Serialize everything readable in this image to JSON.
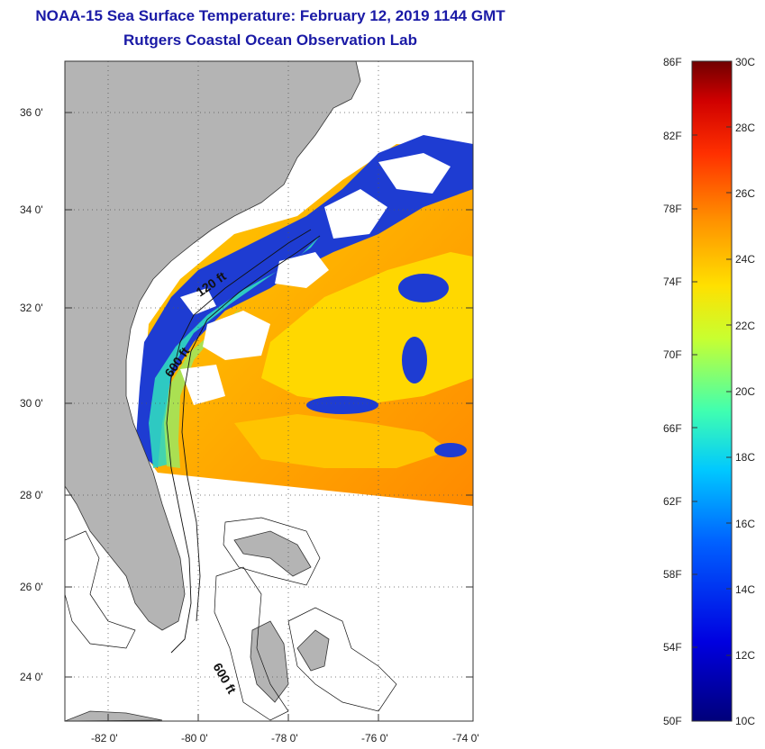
{
  "title": {
    "line1": "NOAA-15 Sea Surface Temperature:  February 12, 2019 1144 GMT",
    "line2": "Rutgers Coastal Ocean Observation Lab"
  },
  "map": {
    "lat_ticks": [
      "36 0'",
      "34 0'",
      "32 0'",
      "30 0'",
      "28 0'",
      "26 0'",
      "24 0'"
    ],
    "lon_ticks": [
      "-82 0'",
      "-80 0'",
      "-78 0'",
      "-76 0'",
      "-74 0'"
    ],
    "contours": [
      "120 ft",
      "600 ft",
      "600 ft"
    ],
    "colors": {
      "land": "#b4b4b4",
      "cloud": "#ffffff",
      "warm": "#ffb400",
      "cool": "#1e3cd2"
    }
  },
  "colorbar": {
    "fahrenheit": [
      "86F",
      "82F",
      "78F",
      "74F",
      "70F",
      "66F",
      "62F",
      "58F",
      "54F",
      "50F"
    ],
    "celsius": [
      "30C",
      "28C",
      "26C",
      "24C",
      "22C",
      "20C",
      "18C",
      "16C",
      "14C",
      "12C",
      "10C"
    ]
  }
}
